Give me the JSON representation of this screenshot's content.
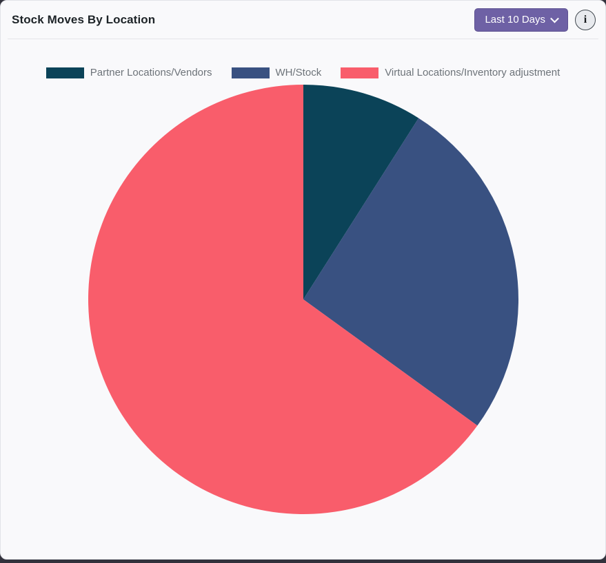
{
  "header": {
    "title": "Stock Moves By Location",
    "filter_button_label": "Last 10 Days",
    "info_icon_glyph": "i"
  },
  "colors": {
    "accent_purple": "#6e61a5",
    "card_background": "#f9f9fb",
    "legend_text": "#6d7379"
  },
  "chart_data": {
    "type": "pie",
    "title": "Stock Moves By Location",
    "labels": [
      "Partner Locations/Vendors",
      "WH/Stock",
      "Virtual Locations/Inventory adjustment"
    ],
    "values": [
      9,
      26,
      65
    ],
    "unit": "percent",
    "colors": [
      "#0b4358",
      "#395181",
      "#f95d6b"
    ],
    "start_angle_deg": 0,
    "direction": "clockwise",
    "legend_position": "top"
  }
}
